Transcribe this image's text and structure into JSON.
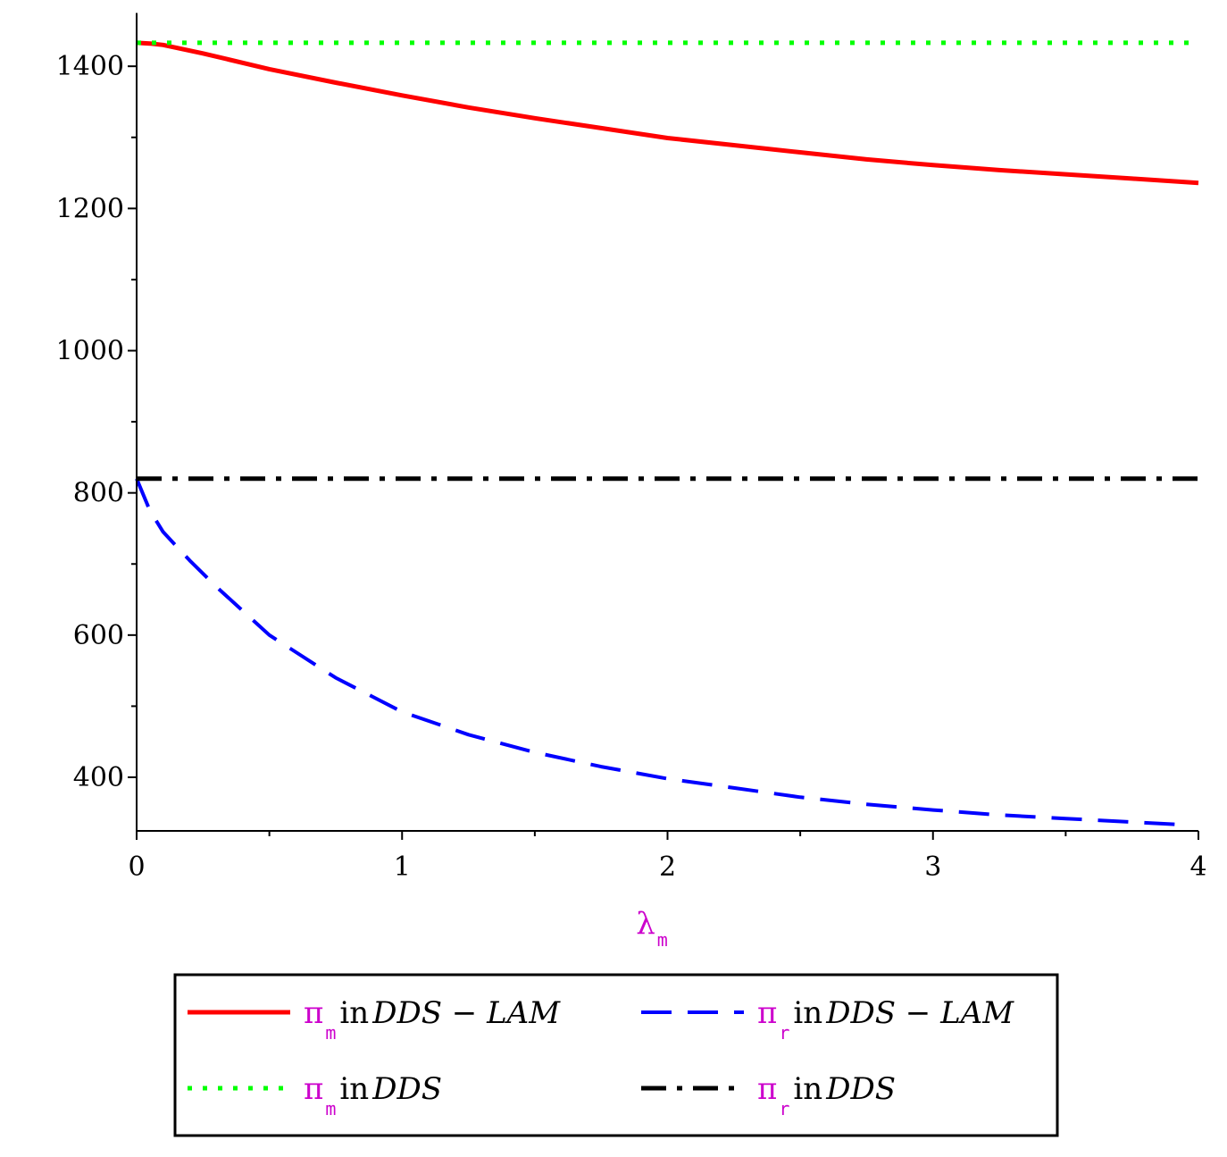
{
  "chart_data": {
    "type": "line",
    "xlim": [
      0,
      4
    ],
    "ylim": [
      330,
      1475
    ],
    "x_ticks": [
      "0",
      "1",
      "2",
      "3",
      "4"
    ],
    "y_ticks": [
      "400",
      "600",
      "800",
      "1000",
      "1200",
      "1400"
    ],
    "xlabel": {
      "symbol": "λ",
      "subscript": "m"
    },
    "grid": false,
    "legend_placement": "bottom",
    "accent_color": "#cc00cc",
    "series": [
      {
        "id": "pi_m_dds_lam",
        "legend": {
          "symbol": "π",
          "subscript": "m",
          "word": "in",
          "model": "DDS − LAM"
        },
        "color": "#ff0000",
        "style": "solid",
        "x": [
          0,
          0.05,
          0.1,
          0.25,
          0.5,
          0.75,
          1,
          1.25,
          1.5,
          1.75,
          2,
          2.25,
          2.5,
          2.75,
          3,
          3.25,
          3.5,
          3.75,
          4
        ],
        "y": [
          1433,
          1432,
          1430,
          1418,
          1396,
          1377,
          1359,
          1342,
          1327,
          1313,
          1299,
          1289,
          1279,
          1269,
          1261,
          1254,
          1248,
          1242,
          1236
        ]
      },
      {
        "id": "pi_r_dds_lam",
        "legend": {
          "symbol": "π",
          "subscript": "r",
          "word": "in",
          "model": "DDS − LAM"
        },
        "color": "#0000ff",
        "style": "dashed",
        "x": [
          0,
          0.05,
          0.1,
          0.2,
          0.3,
          0.5,
          0.75,
          1,
          1.25,
          1.5,
          1.75,
          2,
          2.25,
          2.5,
          2.75,
          3,
          3.25,
          3.5,
          3.75,
          3.95
        ],
        "y": [
          820,
          775,
          745,
          705,
          668,
          600,
          540,
          492,
          460,
          435,
          415,
          398,
          385,
          372,
          362,
          354,
          347,
          342,
          337,
          333
        ]
      },
      {
        "id": "pi_m_dds",
        "legend": {
          "symbol": "π",
          "subscript": "m",
          "word": "in",
          "model": "DDS"
        },
        "color": "#00ff00",
        "style": "dotted",
        "x": [
          0,
          4
        ],
        "y": [
          1433,
          1433
        ]
      },
      {
        "id": "pi_r_dds",
        "legend": {
          "symbol": "π",
          "subscript": "r",
          "word": "in",
          "model": "DDS"
        },
        "color": "#000000",
        "style": "dashdot",
        "x": [
          0,
          4
        ],
        "y": [
          820,
          820
        ]
      }
    ]
  }
}
